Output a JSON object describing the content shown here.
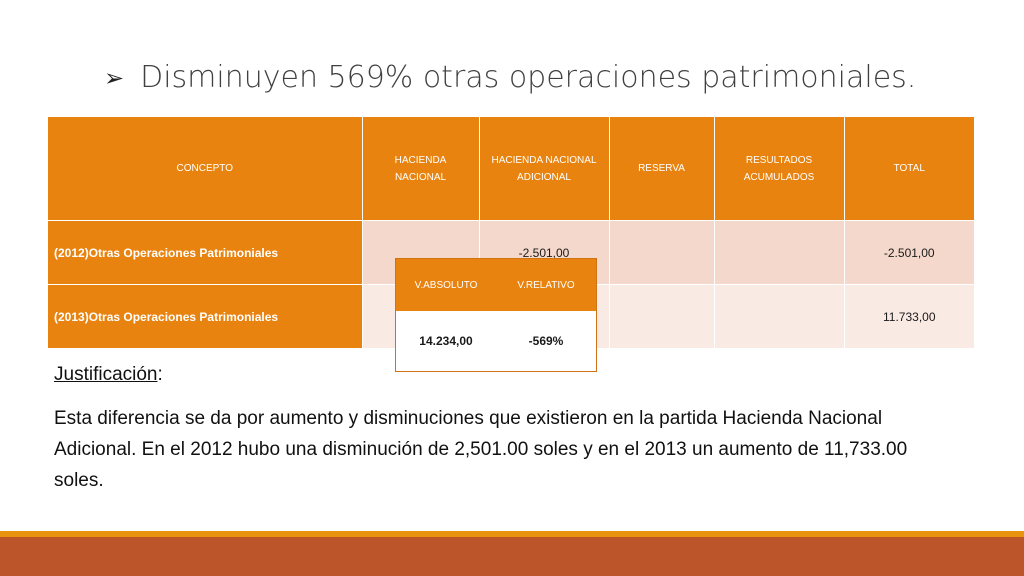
{
  "slide": {
    "bullet_glyph": "➢",
    "title": "Disminuyen 569% otras operaciones patrimoniales."
  },
  "table": {
    "headers": {
      "concepto": "CONCEPTO",
      "hn_1": "HACIENDA",
      "hn_2": "NACIONAL",
      "hna_1": "HACIENDA NACIONAL",
      "hna_2": "ADICIONAL",
      "reserva": "RESERVA",
      "ra_1": "RESULTADOS",
      "ra_2": "ACUMULADOS",
      "total": "TOTAL"
    },
    "rows": [
      {
        "concepto": "(2012)Otras Operaciones Patrimoniales",
        "hacienda_nacional": "",
        "hacienda_nacional_adicional": "-2.501,00",
        "reserva": "",
        "resultados_acumulados": "",
        "total": "-2.501,00"
      },
      {
        "concepto": "(2013)Otras Operaciones Patrimoniales",
        "hacienda_nacional": "",
        "hacienda_nacional_adicional": "",
        "reserva": "",
        "resultados_acumulados": "",
        "total": "11.733,00"
      }
    ]
  },
  "variation": {
    "absoluto_label": "V.ABSOLUTO",
    "relativo_label": "V.RELATIVO",
    "absoluto_value": "14.234,00",
    "relativo_value": "-569%"
  },
  "justification": {
    "label": "Justificación",
    "colon": ":",
    "text": "Esta diferencia se da por aumento y disminuciones que existieron en la partida Hacienda Nacional Adicional. En el 2012 hubo una disminución de 2,501.00 soles y en el 2013 un aumento de 11,733.00 soles."
  },
  "colors": {
    "header_orange": "#e8830f",
    "row1_fill": "#f5d8cc",
    "row2_fill": "#faeae4",
    "footer_strip": "#bc562a"
  }
}
